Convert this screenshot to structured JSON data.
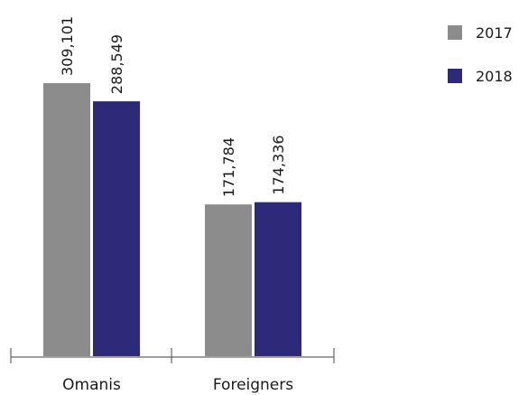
{
  "chart_data": {
    "type": "bar",
    "categories": [
      "Omanis",
      "Foreigners"
    ],
    "series": [
      {
        "name": "2017",
        "color": "#8c8c8c",
        "values": [
          309101,
          171784
        ],
        "value_labels": [
          "309,101",
          "171,784"
        ]
      },
      {
        "name": "2018",
        "color": "#2e2a7a",
        "values": [
          288549,
          174336
        ],
        "value_labels": [
          "288,549",
          "174,336"
        ]
      }
    ],
    "legend": "top-right"
  }
}
